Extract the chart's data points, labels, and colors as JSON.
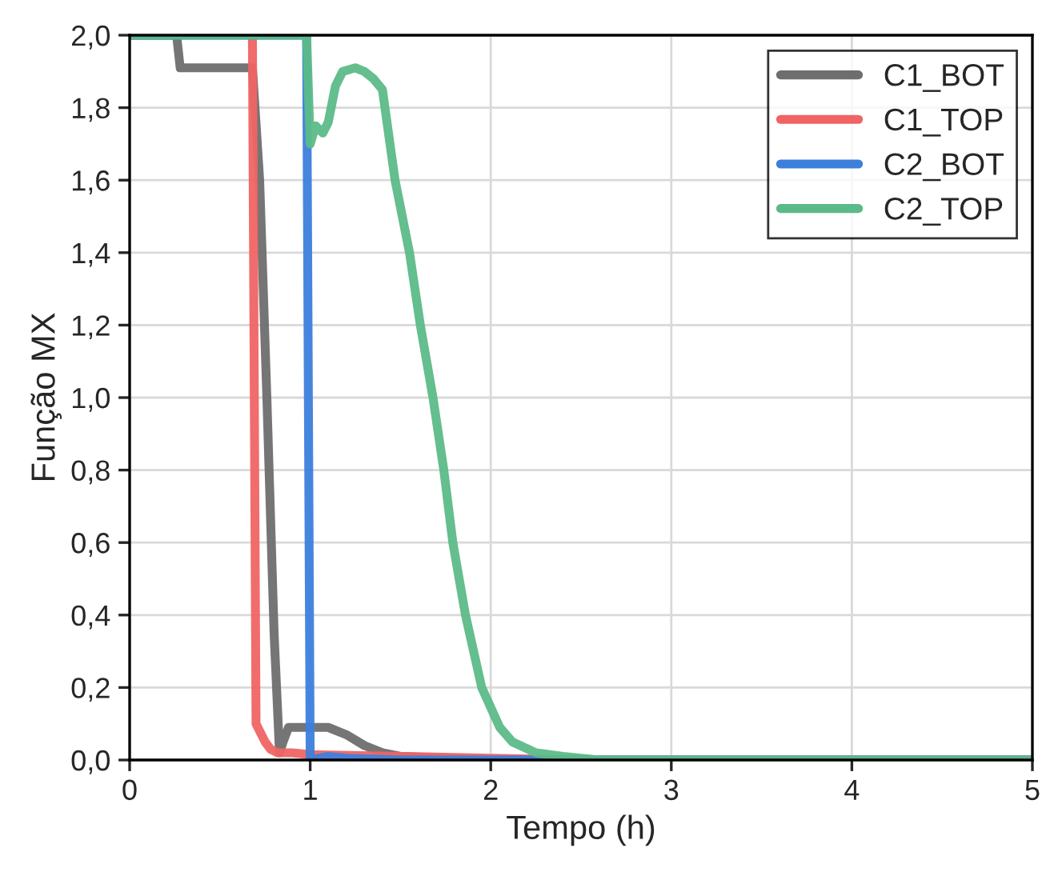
{
  "chart_data": {
    "type": "line",
    "xlabel": "Tempo (h)",
    "ylabel": "Função MX",
    "xlim": [
      0,
      5
    ],
    "ylim": [
      0,
      2.0
    ],
    "xticks": [
      0,
      1,
      2,
      3,
      4,
      5
    ],
    "yticks": [
      {
        "value": 0,
        "label": "0,0"
      },
      {
        "value": 0.2,
        "label": "0,2"
      },
      {
        "value": 0.4,
        "label": "0,4"
      },
      {
        "value": 0.6,
        "label": "0,6"
      },
      {
        "value": 0.8,
        "label": "0,8"
      },
      {
        "value": 1.0,
        "label": "1,0"
      },
      {
        "value": 1.2,
        "label": "1,2"
      },
      {
        "value": 1.4,
        "label": "1,4"
      },
      {
        "value": 1.6,
        "label": "1,6"
      },
      {
        "value": 1.8,
        "label": "1,8"
      },
      {
        "value": 2.0,
        "label": "2,0"
      }
    ],
    "grid": true,
    "legend": "top right",
    "marker": "none",
    "line_style": "solid",
    "series": [
      {
        "name": "C1_BOT",
        "color": "#6e6e6e",
        "x": [
          0,
          0.26,
          0.28,
          0.5,
          0.68,
          0.72,
          0.76,
          0.8,
          0.83,
          0.85,
          0.88,
          0.92,
          1.0,
          1.1,
          1.2,
          1.3,
          1.4,
          1.5,
          1.7,
          2.0,
          2.5,
          5
        ],
        "values": [
          2.0,
          2.0,
          1.91,
          1.91,
          1.91,
          1.6,
          1.0,
          0.35,
          0.02,
          0.05,
          0.09,
          0.09,
          0.09,
          0.09,
          0.07,
          0.04,
          0.02,
          0.01,
          0.005,
          0.0,
          0.0,
          0.0
        ]
      },
      {
        "name": "C1_TOP",
        "color": "#f06464",
        "x": [
          0.68,
          0.7,
          0.72,
          0.75,
          0.78,
          0.82,
          0.9,
          1.0,
          1.5,
          2.0,
          2.5,
          5
        ],
        "values": [
          2.0,
          0.1,
          0.08,
          0.05,
          0.03,
          0.02,
          0.02,
          0.015,
          0.01,
          0.005,
          0.0,
          0.0
        ]
      },
      {
        "name": "C2_BOT",
        "color": "#3d80dc",
        "x": [
          0,
          0.98,
          1.0,
          1.05,
          1.1,
          1.2,
          1.5,
          5
        ],
        "values": [
          2.0,
          2.0,
          0.0,
          0.005,
          0.01,
          0.005,
          0.0,
          0.0
        ]
      },
      {
        "name": "C2_TOP",
        "color": "#5cba88",
        "x": [
          0,
          0.98,
          1.0,
          1.03,
          1.07,
          1.1,
          1.14,
          1.18,
          1.25,
          1.3,
          1.35,
          1.4,
          1.47,
          1.55,
          1.61,
          1.68,
          1.74,
          1.79,
          1.86,
          1.95,
          2.05,
          2.12,
          2.25,
          2.4,
          2.6,
          5
        ],
        "values": [
          2.0,
          2.0,
          1.7,
          1.75,
          1.73,
          1.76,
          1.86,
          1.9,
          1.91,
          1.9,
          1.88,
          1.85,
          1.6,
          1.4,
          1.2,
          1.0,
          0.8,
          0.6,
          0.4,
          0.2,
          0.09,
          0.05,
          0.02,
          0.01,
          0.0,
          0.0
        ]
      }
    ]
  }
}
